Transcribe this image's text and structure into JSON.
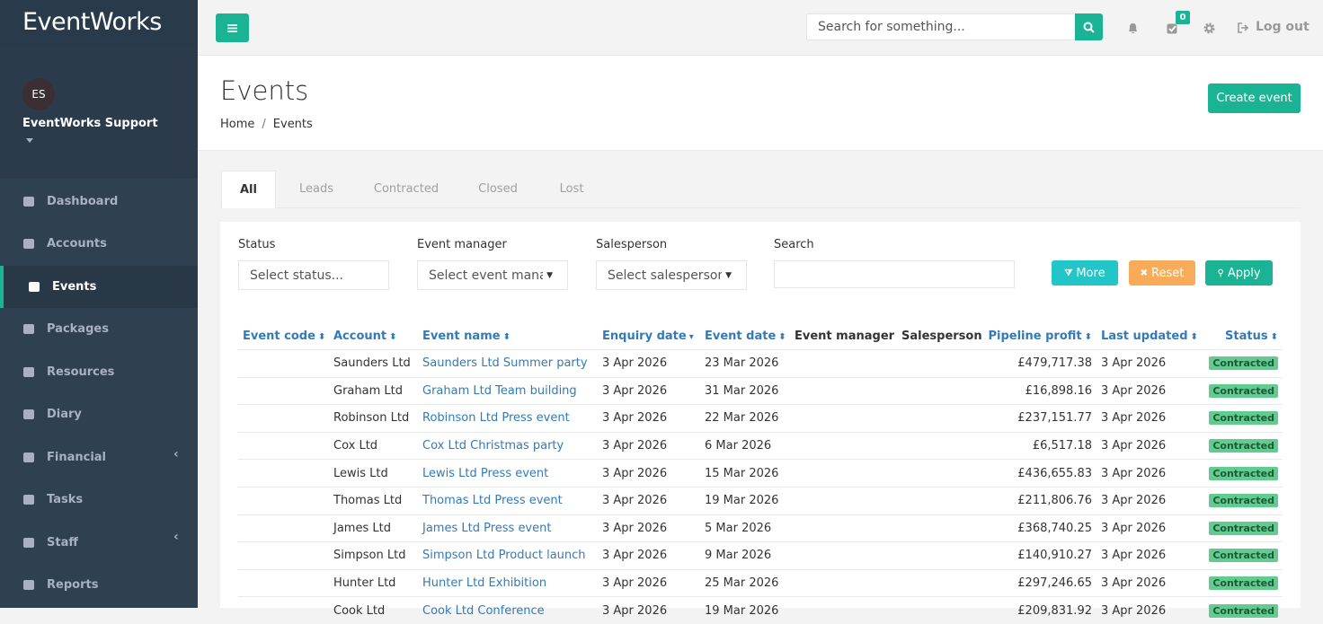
{
  "sidebar": {
    "brand": "EventWorks",
    "user": {
      "initials": "ES",
      "name": "EventWorks Support"
    },
    "menu": [
      "Dashboard",
      "Accounts",
      "Events",
      "Packages",
      "Resources",
      "Diary",
      "Financial",
      "Tasks",
      "Staff",
      "Reports"
    ]
  },
  "topbar": {
    "search_placeholder": "Search for something...",
    "tasks_badge": "0",
    "logout": "Log out"
  },
  "header": {
    "title": "Events",
    "breadcrumb": [
      "Home",
      "Events"
    ],
    "create_button": "Create event"
  },
  "tabs": [
    "All",
    "Leads",
    "Contracted",
    "Closed",
    "Lost"
  ],
  "filters": [
    {
      "label": "Status",
      "placeholder": "Select status..."
    },
    {
      "label": "Event manager",
      "placeholder": "Select event mana"
    },
    {
      "label": "Salesperson",
      "placeholder": "Select salesperson"
    },
    {
      "label": "Search"
    }
  ],
  "filter_buttons": [
    "More",
    "Reset",
    "Apply"
  ],
  "table": {
    "columns": [
      "Event code",
      "Account",
      "Event name",
      "Enquiry date",
      "Event date",
      "Event manager",
      "Salesperson",
      "Pipeline profit",
      "Last updated",
      "Status"
    ],
    "rows": [
      {
        "account": "Saunders Ltd",
        "event_name": "Saunders Ltd Summer party",
        "enquiry_date": "3 Apr 2026",
        "event_date": "23 Mar 2026",
        "pipeline_profit": "£479,717.38",
        "last_updated": "3 Apr 2026",
        "status": "Contracted"
      },
      {
        "account": "Graham Ltd",
        "event_name": "Graham Ltd Team building",
        "enquiry_date": "3 Apr 2026",
        "event_date": "31 Mar 2026",
        "pipeline_profit": "£16,898.16",
        "last_updated": "3 Apr 2026",
        "status": "Contracted"
      },
      {
        "account": "Robinson Ltd",
        "event_name": "Robinson Ltd Press event",
        "enquiry_date": "3 Apr 2026",
        "event_date": "22 Mar 2026",
        "pipeline_profit": "£237,151.77",
        "last_updated": "3 Apr 2026",
        "status": "Contracted"
      },
      {
        "account": "Cox Ltd",
        "event_name": "Cox Ltd Christmas party",
        "enquiry_date": "3 Apr 2026",
        "event_date": "6 Mar 2026",
        "pipeline_profit": "£6,517.18",
        "last_updated": "3 Apr 2026",
        "status": "Contracted"
      },
      {
        "account": "Lewis Ltd",
        "event_name": "Lewis Ltd Press event",
        "enquiry_date": "3 Apr 2026",
        "event_date": "15 Mar 2026",
        "pipeline_profit": "£436,655.83",
        "last_updated": "3 Apr 2026",
        "status": "Contracted"
      },
      {
        "account": "Thomas Ltd",
        "event_name": "Thomas Ltd Press event",
        "enquiry_date": "3 Apr 2026",
        "event_date": "19 Mar 2026",
        "pipeline_profit": "£211,806.76",
        "last_updated": "3 Apr 2026",
        "status": "Contracted"
      },
      {
        "account": "James Ltd",
        "event_name": "James Ltd Press event",
        "enquiry_date": "3 Apr 2026",
        "event_date": "5 Mar 2026",
        "pipeline_profit": "£368,740.25",
        "last_updated": "3 Apr 2026",
        "status": "Contracted"
      },
      {
        "account": "Simpson Ltd",
        "event_name": "Simpson Ltd Product launch",
        "enquiry_date": "3 Apr 2026",
        "event_date": "9 Mar 2026",
        "pipeline_profit": "£140,910.27",
        "last_updated": "3 Apr 2026",
        "status": "Contracted"
      },
      {
        "account": "Hunter Ltd",
        "event_name": "Hunter Ltd Exhibition",
        "enquiry_date": "3 Apr 2026",
        "event_date": "25 Mar 2026",
        "pipeline_profit": "£297,246.65",
        "last_updated": "3 Apr 2026",
        "status": "Contracted"
      },
      {
        "account": "Cook Ltd",
        "event_name": "Cook Ltd Conference",
        "enquiry_date": "3 Apr 2026",
        "event_date": "19 Mar 2026",
        "pipeline_profit": "£209,831.92",
        "last_updated": "3 Apr 2026",
        "status": "Contracted"
      }
    ]
  }
}
